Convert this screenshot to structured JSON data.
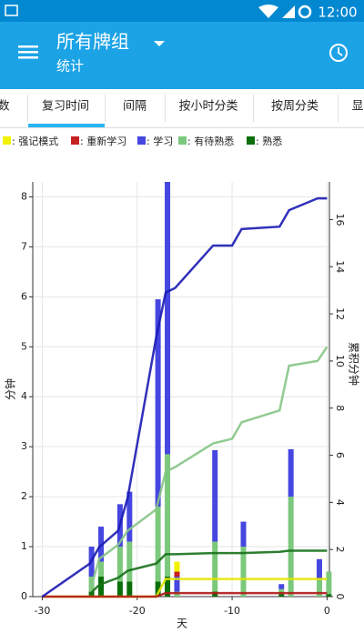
{
  "status_bar": {
    "time": "12:00"
  },
  "toolbar": {
    "title": "所有牌组",
    "subtitle": "统计"
  },
  "tabs": {
    "items": [
      "数",
      "复习时间",
      "间隔",
      "按小时分类",
      "按周分类",
      "显"
    ],
    "selected": 1
  },
  "chart_data": {
    "type": "bar",
    "x_label": "天",
    "y_label": "分钟",
    "y2_label": "累积分钟",
    "x": [
      -25,
      -24,
      -22,
      -21,
      -18,
      -17,
      -16,
      -12,
      -9,
      -5,
      -4,
      -1,
      0
    ],
    "series": [
      {
        "name": ": 强记模式",
        "color": "#f2f200",
        "values": [
          0,
          0,
          0,
          0,
          0,
          0,
          0.2,
          0,
          0,
          0,
          0,
          0,
          0
        ]
      },
      {
        "name": ": 重新学习",
        "color": "#c62020",
        "values": [
          0,
          0,
          0,
          0,
          0,
          0,
          0.1,
          0,
          0,
          0,
          0,
          0,
          0
        ]
      },
      {
        "name": ": 学习",
        "color": "#4646e0",
        "values": [
          0.6,
          0.7,
          0.85,
          1.0,
          4.15,
          5.45,
          0.3,
          1.83,
          0.5,
          0.1,
          0.95,
          0.4,
          0
        ]
      },
      {
        "name": ": 有待熟悉",
        "color": "#7cc87c",
        "values": [
          0.3,
          0.3,
          0.7,
          0.8,
          1.5,
          2.45,
          0.1,
          1.0,
          1.0,
          0.1,
          2.0,
          0.35,
          0.45
        ]
      },
      {
        "name": ": 熟悉",
        "color": "#0a6e0a",
        "values": [
          0.1,
          0.4,
          0.3,
          0.3,
          0.3,
          0.4,
          0,
          0.1,
          0,
          0.05,
          0,
          0,
          0.05
        ]
      }
    ],
    "lines": {
      "x": [
        -30,
        -25,
        -24,
        -22,
        -21,
        -18,
        -17,
        -16,
        -12,
        -10,
        -9,
        -5,
        -4,
        -1,
        0
      ],
      "series": [
        {
          "color": "#e6e600",
          "axis": "y2",
          "values": [
            0,
            0,
            0,
            0,
            0,
            0,
            0.75,
            0.75,
            0.75,
            0.75,
            0.75,
            0.75,
            0.75,
            0.75,
            0.75
          ]
        },
        {
          "color": "#b01818",
          "axis": "y2",
          "values": [
            0,
            0,
            0,
            0,
            0,
            0,
            0.15,
            0.15,
            0.15,
            0.15,
            0.15,
            0.15,
            0.15,
            0.15,
            0.15
          ]
        },
        {
          "color": "#1a1ab4",
          "axis": "y2",
          "values": [
            0,
            1.4,
            2.1,
            2.8,
            4.2,
            11.0,
            12.9,
            13.1,
            14.9,
            14.9,
            15.6,
            15.7,
            16.4,
            16.9,
            16.9
          ]
        },
        {
          "color": "#86c486",
          "axis": "y2",
          "values": [
            null,
            0.2,
            1.6,
            2.2,
            2.8,
            3.7,
            5.3,
            5.5,
            6.5,
            6.7,
            7.4,
            7.9,
            9.8,
            10.0,
            10.6
          ]
        },
        {
          "color": "#17701a",
          "axis": "y2",
          "values": [
            null,
            0.1,
            0.5,
            0.8,
            1.1,
            1.4,
            1.8,
            1.8,
            1.85,
            1.85,
            1.85,
            1.9,
            1.95,
            1.95,
            1.95
          ]
        }
      ]
    },
    "xlim": [
      -31,
      0.25
    ],
    "xticks": [
      -30,
      -20,
      -10,
      0
    ],
    "ylim": [
      0,
      8.3
    ],
    "yticks": [
      0,
      1,
      2,
      3,
      4,
      5,
      6,
      7,
      8
    ],
    "y2lim": [
      0,
      17.6
    ],
    "y2ticks": [
      0,
      2,
      4,
      6,
      8,
      10,
      12,
      14,
      16
    ],
    "grid": true
  }
}
